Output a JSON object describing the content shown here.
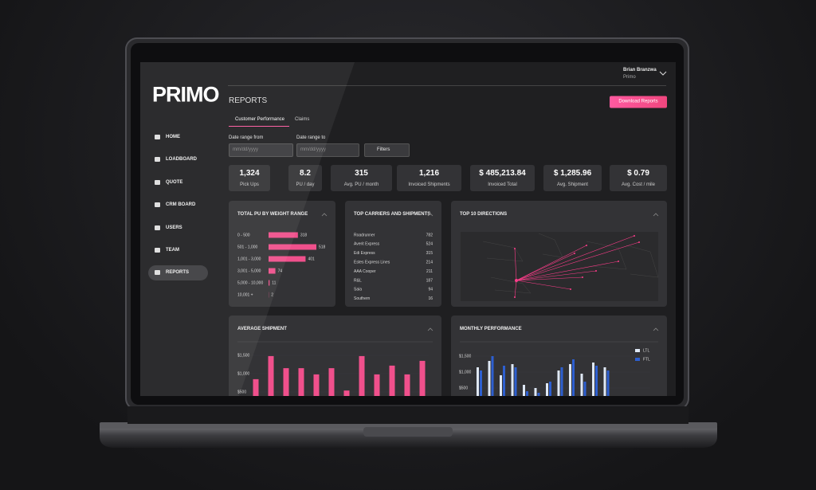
{
  "brand": "PRIMO",
  "user": {
    "name": "Brian Branzwa",
    "company": "Primo"
  },
  "nav": [
    "HOME",
    "LOADBOARD",
    "QUOTE",
    "CRM BOARD",
    "USERS",
    "TEAM",
    "REPORTS"
  ],
  "page_title": "REPORTS",
  "download": "Download Reports",
  "tabs": [
    "Customer Performance",
    "Claims"
  ],
  "filters": {
    "from_label": "Date range from",
    "to_label": "Date range to",
    "placeholder": "mm/dd/yyyy",
    "button": "Filters"
  },
  "kpis": [
    {
      "value": "1,324",
      "label": "Pick Ups"
    },
    {
      "value": "8.2",
      "label": "PU / day"
    },
    {
      "value": "315",
      "label": "Avg. PU / month"
    },
    {
      "value": "1,216",
      "label": "Invoiced Shipments"
    },
    {
      "value": "$ 485,213.84",
      "label": "Invoiced Total"
    },
    {
      "value": "$ 1,285.96",
      "label": "Avg. Shipment"
    },
    {
      "value": "$ 0.79",
      "label": "Avg. Cost / mile"
    }
  ],
  "weight_chart": {
    "type": "bar",
    "title": "TOTAL PU BY WEIGHT RANGE",
    "color": "#f0508c",
    "categories": [
      "0 - 500",
      "501 - 1,000",
      "1,001 - 3,000",
      "3,001 - 5,000",
      "5,000 - 10,000",
      "10,001 +"
    ],
    "values": [
      318,
      518,
      401,
      74,
      11,
      2
    ]
  },
  "carriers": {
    "title": "TOP CARRIERS AND SHIPMENTS",
    "rows": [
      [
        "Roadrunner",
        782
      ],
      [
        "Averit Express",
        524
      ],
      [
        "Edi Express",
        315
      ],
      [
        "Estes Express Lines",
        214
      ],
      [
        "AAA Cooper",
        211
      ],
      [
        "R&L",
        187
      ],
      [
        "Saia",
        94
      ],
      [
        "Southern",
        16
      ]
    ]
  },
  "directions": {
    "title": "TOP 10 DIRECTIONS"
  },
  "avg_shipment": {
    "type": "bar",
    "title": "AVERAGE SHIPMENT",
    "color": "#f0508c",
    "ylim": [
      0,
      1600
    ],
    "yticks": [
      {
        "value": 500,
        "label": "$500"
      },
      {
        "value": 1000,
        "label": "$1,000"
      },
      {
        "value": 1500,
        "label": "$1,500"
      }
    ],
    "values": [
      850,
      1480,
      1150,
      1150,
      980,
      1150,
      540,
      1480,
      980,
      1220,
      980,
      1350
    ]
  },
  "monthly": {
    "type": "bar",
    "title": "MONTHLY PERFORMANCE",
    "ylim": [
      0,
      1600
    ],
    "yticks": [
      {
        "value": 500,
        "label": "$500"
      },
      {
        "value": 1000,
        "label": "$1,000"
      },
      {
        "value": 1500,
        "label": "$1,500"
      }
    ],
    "series": [
      {
        "name": "LTL",
        "color": "#dfe8f5",
        "values": [
          1150,
          1350,
          900,
          1250,
          600,
          500,
          650,
          1050,
          1250,
          950,
          1300,
          1150
        ]
      },
      {
        "name": "FTL",
        "color": "#2d5fd0",
        "values": [
          1050,
          1500,
          1200,
          1150,
          400,
          350,
          700,
          1150,
          1400,
          700,
          1200,
          1050
        ]
      }
    ]
  }
}
